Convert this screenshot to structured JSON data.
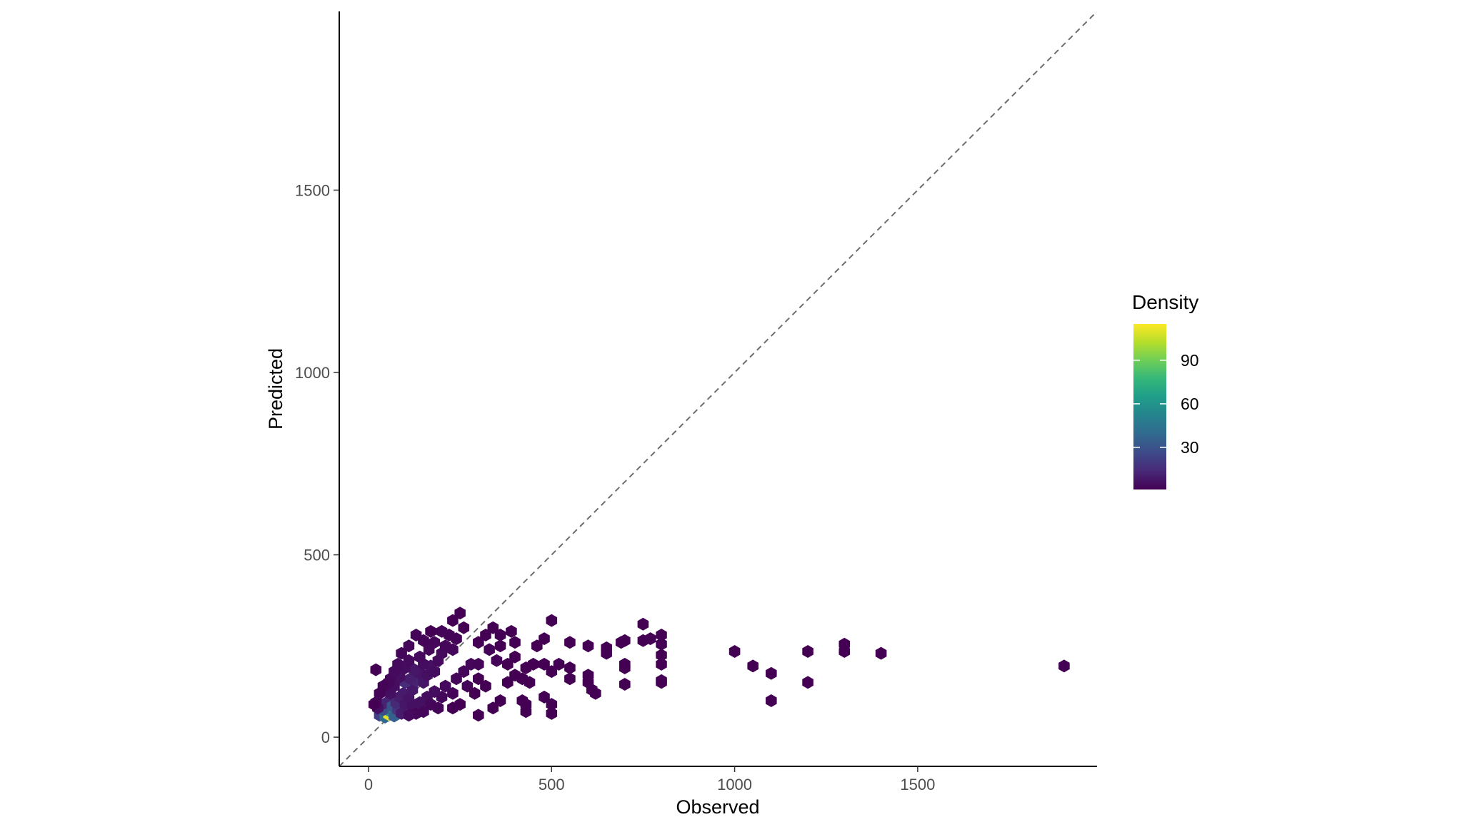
{
  "chart_data": {
    "type": "hexbin",
    "xlabel": "Observed",
    "ylabel": "Predicted",
    "xlim": [
      -80,
      1990
    ],
    "ylim": [
      -80,
      1990
    ],
    "x_ticks": [
      0,
      500,
      1000,
      1500
    ],
    "y_ticks": [
      0,
      500,
      1000,
      1500
    ],
    "grid": false,
    "reference_line": {
      "type": "identity",
      "style": "dashed",
      "color": "#6e6e6e"
    },
    "legend": {
      "title": "Density",
      "placement": "right",
      "ticks": [
        30,
        60,
        90
      ],
      "min": 1,
      "max": 115,
      "palette": [
        "#440154",
        "#482878",
        "#3e4a89",
        "#31688e",
        "#26828e",
        "#1f9e89",
        "#35b779",
        "#6ece58",
        "#b5de2b",
        "#fde725"
      ]
    },
    "points": [
      [
        30,
        60,
        22
      ],
      [
        45,
        55,
        40
      ],
      [
        55,
        62,
        110
      ],
      [
        60,
        70,
        60
      ],
      [
        70,
        58,
        35
      ],
      [
        40,
        75,
        28
      ],
      [
        35,
        90,
        8
      ],
      [
        50,
        95,
        12
      ],
      [
        65,
        85,
        30
      ],
      [
        80,
        75,
        18
      ],
      [
        90,
        65,
        9
      ],
      [
        25,
        80,
        6
      ],
      [
        20,
        95,
        3
      ],
      [
        75,
        95,
        14
      ],
      [
        85,
        110,
        10
      ],
      [
        100,
        90,
        8
      ],
      [
        60,
        120,
        6
      ],
      [
        45,
        130,
        5
      ],
      [
        95,
        120,
        9
      ],
      [
        110,
        105,
        7
      ],
      [
        120,
        130,
        8
      ],
      [
        70,
        140,
        5
      ],
      [
        100,
        150,
        15
      ],
      [
        130,
        155,
        12
      ],
      [
        115,
        160,
        10
      ],
      [
        85,
        165,
        6
      ],
      [
        150,
        150,
        8
      ],
      [
        140,
        175,
        7
      ],
      [
        160,
        170,
        6
      ],
      [
        125,
        185,
        8
      ],
      [
        100,
        190,
        5
      ],
      [
        170,
        195,
        6
      ],
      [
        180,
        180,
        5
      ],
      [
        150,
        200,
        5
      ],
      [
        110,
        210,
        4
      ],
      [
        140,
        220,
        4
      ],
      [
        190,
        210,
        4
      ],
      [
        200,
        230,
        4
      ],
      [
        165,
        240,
        3
      ],
      [
        210,
        250,
        3
      ],
      [
        230,
        240,
        3
      ],
      [
        180,
        260,
        3
      ],
      [
        150,
        265,
        2
      ],
      [
        240,
        270,
        2
      ],
      [
        220,
        280,
        2
      ],
      [
        200,
        290,
        2
      ],
      [
        260,
        300,
        1
      ],
      [
        250,
        340,
        1
      ],
      [
        230,
        320,
        1
      ],
      [
        170,
        290,
        1
      ],
      [
        130,
        280,
        2
      ],
      [
        110,
        250,
        3
      ],
      [
        90,
        230,
        3
      ],
      [
        80,
        200,
        4
      ],
      [
        70,
        180,
        4
      ],
      [
        60,
        160,
        4
      ],
      [
        55,
        150,
        3
      ],
      [
        40,
        140,
        2
      ],
      [
        30,
        120,
        2
      ],
      [
        20,
        185,
        1
      ],
      [
        15,
        90,
        1
      ],
      [
        300,
        260,
        1
      ],
      [
        320,
        280,
        1
      ],
      [
        330,
        240,
        2
      ],
      [
        280,
        200,
        3
      ],
      [
        300,
        200,
        2
      ],
      [
        350,
        210,
        2
      ],
      [
        380,
        200,
        1
      ],
      [
        400,
        220,
        1
      ],
      [
        260,
        180,
        3
      ],
      [
        240,
        160,
        3
      ],
      [
        270,
        140,
        2
      ],
      [
        300,
        160,
        1
      ],
      [
        320,
        140,
        1
      ],
      [
        290,
        120,
        1
      ],
      [
        230,
        120,
        2
      ],
      [
        200,
        110,
        3
      ],
      [
        210,
        140,
        4
      ],
      [
        180,
        125,
        5
      ],
      [
        160,
        110,
        5
      ],
      [
        140,
        95,
        6
      ],
      [
        120,
        85,
        6
      ],
      [
        170,
        90,
        3
      ],
      [
        190,
        80,
        2
      ],
      [
        150,
        70,
        3
      ],
      [
        130,
        65,
        3
      ],
      [
        110,
        60,
        4
      ],
      [
        250,
        90,
        1
      ],
      [
        230,
        80,
        1
      ],
      [
        300,
        60,
        1
      ],
      [
        340,
        80,
        1
      ],
      [
        360,
        100,
        1
      ],
      [
        380,
        150,
        1
      ],
      [
        400,
        170,
        1
      ],
      [
        420,
        160,
        1
      ],
      [
        440,
        150,
        1
      ],
      [
        430,
        190,
        1
      ],
      [
        450,
        200,
        1
      ],
      [
        460,
        250,
        1
      ],
      [
        480,
        200,
        1
      ],
      [
        500,
        180,
        1
      ],
      [
        500,
        320,
        1
      ],
      [
        480,
        270,
        1
      ],
      [
        390,
        290,
        1
      ],
      [
        400,
        260,
        1
      ],
      [
        360,
        280,
        1
      ],
      [
        360,
        250,
        1
      ],
      [
        340,
        300,
        1
      ],
      [
        520,
        200,
        1
      ],
      [
        550,
        190,
        1
      ],
      [
        550,
        160,
        1
      ],
      [
        550,
        260,
        1
      ],
      [
        600,
        250,
        1
      ],
      [
        600,
        170,
        1
      ],
      [
        600,
        150,
        1
      ],
      [
        610,
        130,
        1
      ],
      [
        620,
        120,
        1
      ],
      [
        650,
        230,
        1
      ],
      [
        650,
        245,
        1
      ],
      [
        690,
        260,
        1
      ],
      [
        700,
        265,
        1
      ],
      [
        700,
        200,
        1
      ],
      [
        700,
        190,
        1
      ],
      [
        700,
        145,
        1
      ],
      [
        750,
        310,
        1
      ],
      [
        750,
        265,
        1
      ],
      [
        770,
        270,
        1
      ],
      [
        800,
        280,
        1
      ],
      [
        800,
        255,
        1
      ],
      [
        800,
        225,
        1
      ],
      [
        800,
        200,
        1
      ],
      [
        800,
        155,
        1
      ],
      [
        800,
        150,
        1
      ],
      [
        420,
        100,
        1
      ],
      [
        430,
        90,
        1
      ],
      [
        480,
        110,
        1
      ],
      [
        500,
        90,
        1
      ],
      [
        500,
        65,
        1
      ],
      [
        430,
        70,
        1
      ],
      [
        1000,
        235,
        1
      ],
      [
        1050,
        195,
        1
      ],
      [
        1100,
        175,
        1
      ],
      [
        1100,
        100,
        1
      ],
      [
        1200,
        235,
        1
      ],
      [
        1200,
        150,
        1
      ],
      [
        1300,
        255,
        1
      ],
      [
        1300,
        235,
        1
      ],
      [
        1400,
        230,
        1
      ],
      [
        1900,
        195,
        1
      ]
    ]
  }
}
